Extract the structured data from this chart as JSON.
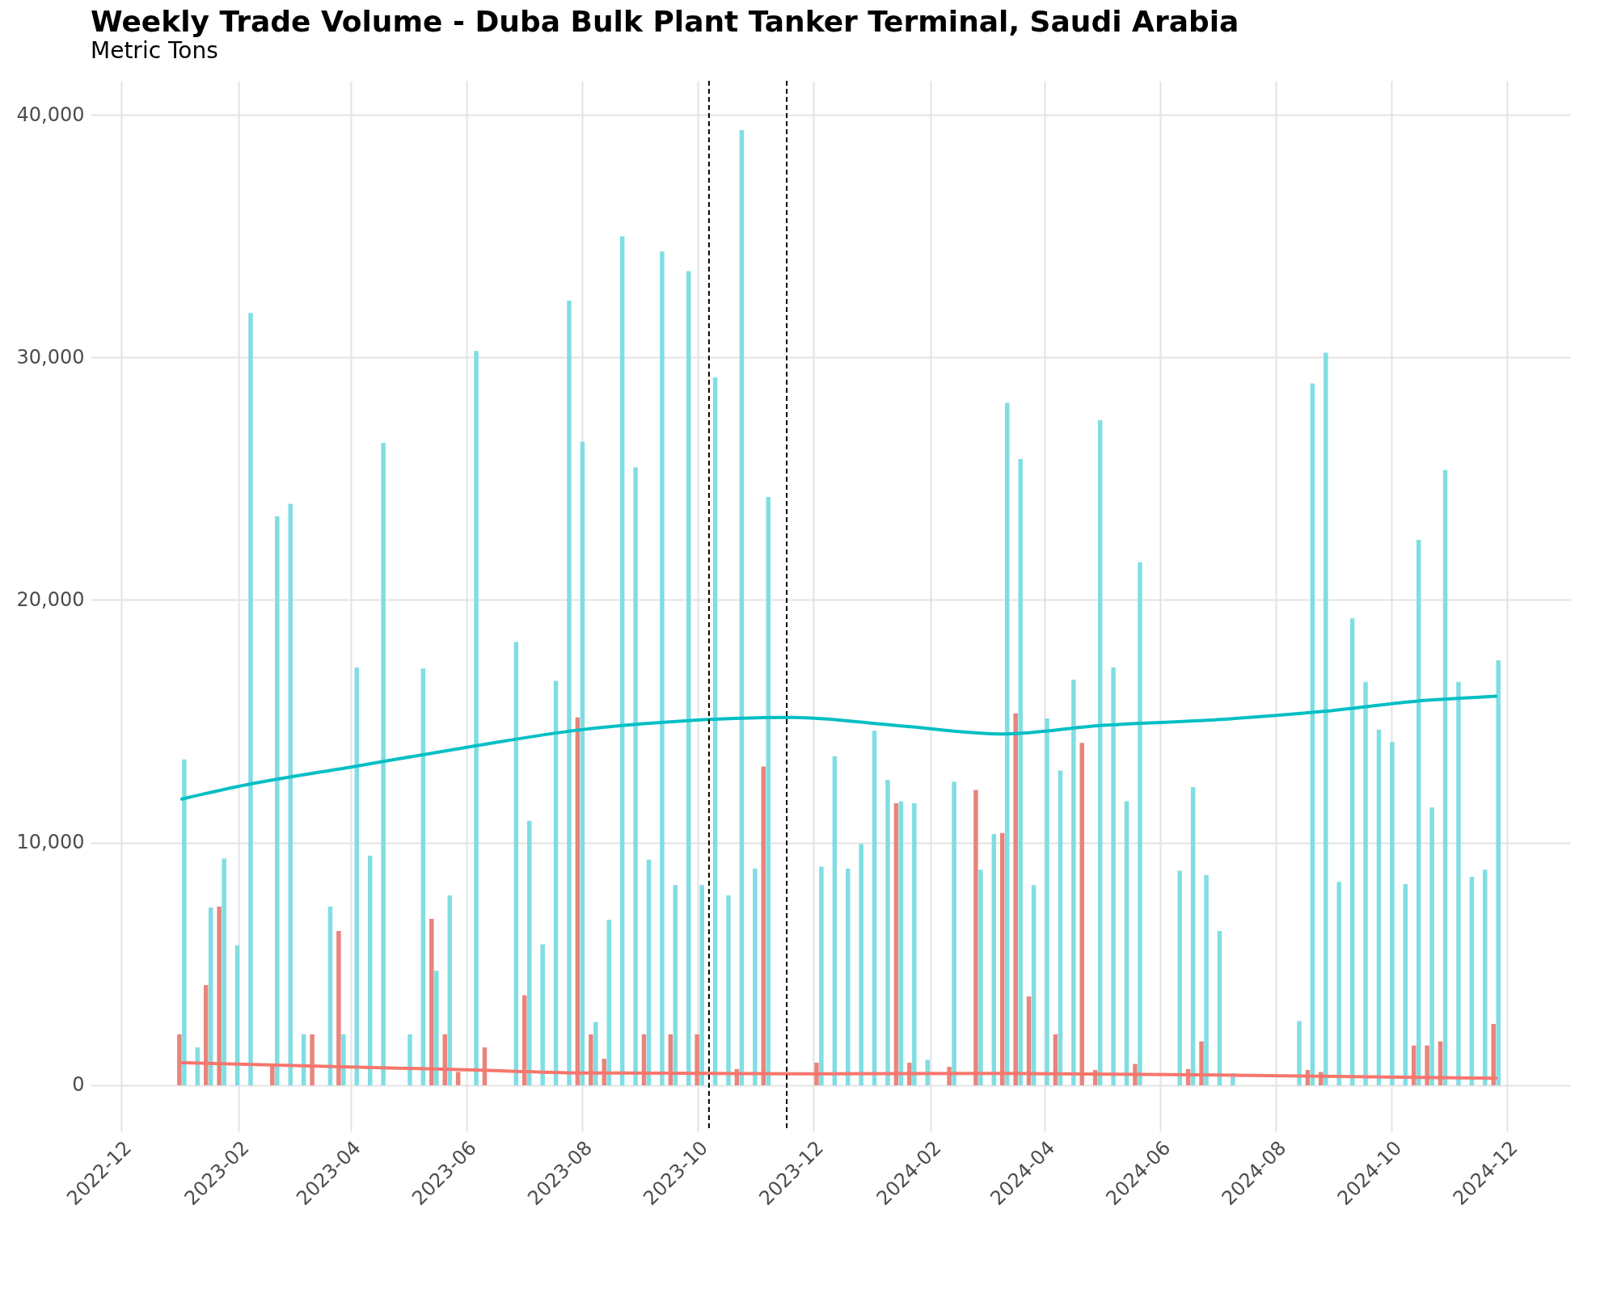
{
  "chart_data": {
    "type": "bar",
    "title": "Weekly Trade Volume - Duba Bulk Plant Tanker Terminal, Saudi Arabia",
    "subtitle": "Metric Tons",
    "xlim": [
      "2022-11-17",
      "2025-01-01"
    ],
    "xticks": [
      {
        "value": "2022-12",
        "label": "2022-12"
      },
      {
        "value": "2023-02",
        "label": "2023-02"
      },
      {
        "value": "2023-04",
        "label": "2023-04"
      },
      {
        "value": "2023-06",
        "label": "2023-06"
      },
      {
        "value": "2023-08",
        "label": "2023-08"
      },
      {
        "value": "2023-10",
        "label": "2023-10"
      },
      {
        "value": "2023-12",
        "label": "2023-12"
      },
      {
        "value": "2024-02",
        "label": "2024-02"
      },
      {
        "value": "2024-04",
        "label": "2024-04"
      },
      {
        "value": "2024-06",
        "label": "2024-06"
      },
      {
        "value": "2024-08",
        "label": "2024-08"
      },
      {
        "value": "2024-10",
        "label": "2024-10"
      },
      {
        "value": "2024-12",
        "label": "2024-12"
      }
    ],
    "ylim": [
      -1900,
      41400
    ],
    "yticks": [
      {
        "value": 0,
        "label": "0"
      },
      {
        "value": 10000,
        "label": "10,000"
      },
      {
        "value": 20000,
        "label": "20,000"
      },
      {
        "value": 30000,
        "label": "30,000"
      },
      {
        "value": 40000,
        "label": "40,000"
      }
    ],
    "grid": true,
    "series": [
      {
        "color": "#e8847c",
        "x": [
          "2023-01-02",
          "2023-01-16",
          "2023-01-23",
          "2023-02-20",
          "2023-03-13",
          "2023-03-27",
          "2023-05-15",
          "2023-05-22",
          "2023-05-29",
          "2023-06-12",
          "2023-07-03",
          "2023-07-31",
          "2023-08-07",
          "2023-08-14",
          "2023-09-04",
          "2023-09-18",
          "2023-10-02",
          "2023-10-23",
          "2023-11-06",
          "2023-12-04",
          "2024-01-15",
          "2024-01-22",
          "2024-02-12",
          "2024-02-26",
          "2024-03-11",
          "2024-03-18",
          "2024-03-25",
          "2024-04-08",
          "2024-04-22",
          "2024-04-29",
          "2024-05-20",
          "2024-06-17",
          "2024-06-24",
          "2024-08-19",
          "2024-08-26",
          "2024-10-14",
          "2024-10-21",
          "2024-10-28",
          "2024-11-25"
        ],
        "values": [
          2100,
          4130,
          7370,
          840,
          2100,
          6360,
          6860,
          2100,
          550,
          1560,
          3710,
          15160,
          2100,
          1090,
          2100,
          2100,
          2100,
          670,
          13140,
          930,
          11620,
          930,
          760,
          12170,
          10400,
          15330,
          3660,
          2100,
          14110,
          630,
          880,
          670,
          1810,
          630,
          550,
          1640,
          1640,
          1810,
          2530
        ]
      },
      {
        "color": "#80dee2",
        "x": [
          "2023-01-02",
          "2023-01-09",
          "2023-01-16",
          "2023-01-23",
          "2023-01-30",
          "2023-02-06",
          "2023-02-20",
          "2023-02-27",
          "2023-03-06",
          "2023-03-20",
          "2023-03-27",
          "2023-04-03",
          "2023-04-10",
          "2023-04-17",
          "2023-05-01",
          "2023-05-08",
          "2023-05-15",
          "2023-05-22",
          "2023-06-05",
          "2023-06-26",
          "2023-07-03",
          "2023-07-10",
          "2023-07-17",
          "2023-07-24",
          "2023-07-31",
          "2023-08-07",
          "2023-08-14",
          "2023-08-21",
          "2023-08-28",
          "2023-09-04",
          "2023-09-11",
          "2023-09-18",
          "2023-09-25",
          "2023-10-02",
          "2023-10-09",
          "2023-10-16",
          "2023-10-23",
          "2023-10-30",
          "2023-11-06",
          "2023-12-04",
          "2023-12-11",
          "2023-12-18",
          "2023-12-25",
          "2024-01-01",
          "2024-01-08",
          "2024-01-15",
          "2024-01-22",
          "2024-01-29",
          "2024-02-12",
          "2024-02-26",
          "2024-03-04",
          "2024-03-11",
          "2024-03-18",
          "2024-03-25",
          "2024-04-01",
          "2024-04-08",
          "2024-04-15",
          "2024-04-29",
          "2024-05-06",
          "2024-05-13",
          "2024-05-20",
          "2024-06-10",
          "2024-06-17",
          "2024-06-24",
          "2024-07-01",
          "2024-07-08",
          "2024-08-12",
          "2024-08-19",
          "2024-08-26",
          "2024-09-02",
          "2024-09-09",
          "2024-09-16",
          "2024-09-23",
          "2024-09-30",
          "2024-10-07",
          "2024-10-14",
          "2024-10-21",
          "2024-10-28",
          "2024-11-04",
          "2024-11-11",
          "2024-11-18",
          "2024-11-25"
        ],
        "values": [
          13430,
          1560,
          7330,
          9350,
          5770,
          31830,
          23450,
          23960,
          2100,
          7370,
          2100,
          17220,
          9470,
          26480,
          2100,
          17180,
          4720,
          7830,
          30270,
          18270,
          10900,
          5810,
          16670,
          32340,
          26530,
          2610,
          6820,
          34990,
          25470,
          9300,
          34360,
          8250,
          33560,
          8250,
          29180,
          7830,
          39370,
          8930,
          24250,
          9010,
          13560,
          8930,
          9940,
          14610,
          12590,
          11710,
          11620,
          1050,
          12510,
          8880,
          10360,
          28130,
          25810,
          8250,
          15120,
          12970,
          16720,
          27410,
          17220,
          11710,
          21560,
          8840,
          12290,
          8670,
          6360,
          500,
          2650,
          28930,
          30190,
          8380,
          19240,
          16630,
          14650,
          14150,
          8290,
          22480,
          11450,
          25350,
          16630,
          8590,
          8880,
          17520
        ]
      },
      {
        "type": "line",
        "color": "#00bfc4",
        "x": [
          "2023-01-02",
          "2023-01-30",
          "2023-04-03",
          "2023-06-05",
          "2023-07-31",
          "2023-09-18",
          "2023-11-20",
          "2024-01-15",
          "2024-03-11",
          "2024-04-29",
          "2024-07-01",
          "2024-08-26",
          "2024-10-14",
          "2024-11-25"
        ],
        "values": [
          11800,
          12290,
          13140,
          13980,
          14650,
          14990,
          15160,
          14820,
          14480,
          14820,
          15070,
          15410,
          15830,
          16040
        ]
      },
      {
        "type": "line",
        "color": "#f8766d",
        "x": [
          "2023-01-02",
          "2023-06-05",
          "2023-07-31",
          "2023-11-20",
          "2024-03-11",
          "2024-07-01",
          "2024-11-25"
        ],
        "values": [
          930,
          630,
          510,
          470,
          490,
          420,
          290
        ]
      }
    ],
    "ref_lines": [
      {
        "axis": "x",
        "value": "2023-10-07",
        "color": "#000000",
        "line_style": "dashed"
      },
      {
        "axis": "x",
        "value": "2023-11-17",
        "color": "#000000",
        "line_style": "dashed"
      }
    ]
  }
}
